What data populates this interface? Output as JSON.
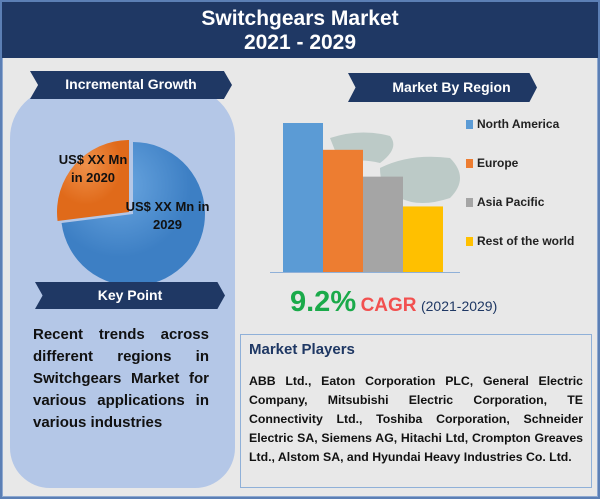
{
  "header": {
    "title": "Switchgears Market",
    "years": "2021 - 2029"
  },
  "incremental": {
    "title": "Incremental Growth",
    "label_2020": "US$ XX Mn in 2020",
    "label_2029": "US$ XX Mn in 2029"
  },
  "key_point": {
    "title": "Key Point",
    "text": "Recent trends across different regions in Switchgears Market for various applications in various industries"
  },
  "region": {
    "title": "Market By Region"
  },
  "cagr": {
    "value": "9.2%",
    "label": "CAGR",
    "period": "(2021-2029)",
    "value_color": "#1aaa4a",
    "label_color": "#f2504f"
  },
  "players": {
    "title": "Market Players",
    "text": "ABB Ltd., Eaton Corporation PLC, General Electric Company, Mitsubishi Electric Corporation, TE Connectivity Ltd., Toshiba Corporation, Schneider Electric SA, Siemens AG, Hitachi Ltd, Crompton Greaves Ltd., Alstom SA, and Hyundai Heavy Industries Co. Ltd."
  },
  "chart_data": [
    {
      "type": "bar",
      "categories": [
        "North America",
        "Europe",
        "Asia Pacific",
        "Rest of the world"
      ],
      "values": [
        100,
        82,
        64,
        44
      ],
      "colors": [
        "#5b9bd5",
        "#ed7d31",
        "#a5a5a5",
        "#ffc000"
      ],
      "legend": "right",
      "grid": false
    },
    {
      "type": "pie",
      "categories": [
        "US$ XX Mn in 2020",
        "US$ XX Mn in 2029"
      ],
      "values": [
        27,
        73
      ],
      "colors": [
        "#ed7d31",
        "#5b9bd5"
      ]
    }
  ]
}
